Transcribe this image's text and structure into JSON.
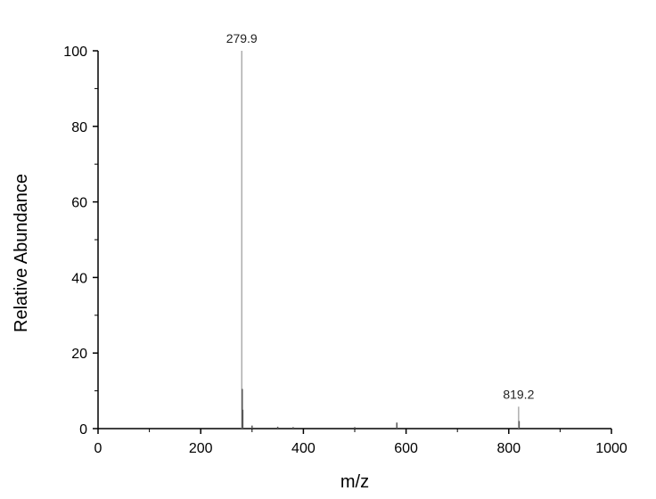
{
  "chart_data": {
    "type": "bar",
    "title": "",
    "xlabel": "m/z",
    "ylabel": "Relative Abundance",
    "xlim": [
      0,
      1000
    ],
    "ylim": [
      0,
      100
    ],
    "x_ticks": [
      0,
      200,
      400,
      600,
      800,
      1000
    ],
    "y_ticks": [
      0,
      20,
      40,
      60,
      80,
      100
    ],
    "x_tick_labels": [
      "0",
      "200",
      "400",
      "600",
      "800",
      "1000"
    ],
    "y_tick_labels": [
      "0",
      "20",
      "40",
      "60",
      "80",
      "100"
    ],
    "grid": false,
    "legend": "none",
    "peaks": [
      {
        "mz": 279.9,
        "abundance": 100,
        "label": "279.9"
      },
      {
        "mz": 280.9,
        "abundance": 10.5,
        "label": ""
      },
      {
        "mz": 281.9,
        "abundance": 5,
        "label": ""
      },
      {
        "mz": 300,
        "abundance": 0.8,
        "label": ""
      },
      {
        "mz": 350,
        "abundance": 0.5,
        "label": ""
      },
      {
        "mz": 380,
        "abundance": 0.4,
        "label": ""
      },
      {
        "mz": 500,
        "abundance": 0.4,
        "label": ""
      },
      {
        "mz": 582,
        "abundance": 1.6,
        "label": ""
      },
      {
        "mz": 819.2,
        "abundance": 5.8,
        "label": "819.2"
      },
      {
        "mz": 820.2,
        "abundance": 2.0,
        "label": ""
      }
    ]
  }
}
